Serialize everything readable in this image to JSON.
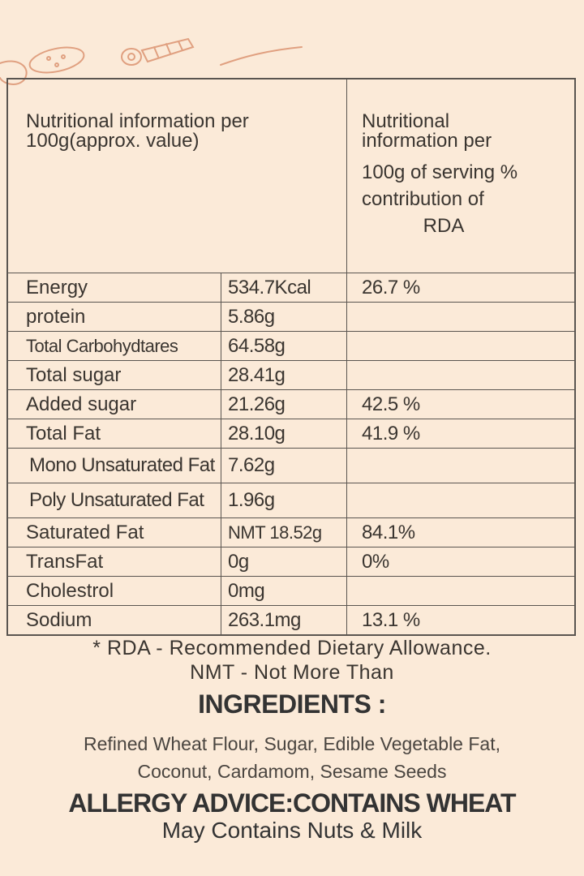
{
  "header": {
    "left_line1": "Nutritional information per",
    "left_line2": "100g(approx. value)",
    "right_line1": "Nutritional",
    "right_line2": "information per",
    "right_line3": "100g of serving %",
    "right_line4": "contribution of",
    "right_line5": "RDA"
  },
  "rows": [
    {
      "label": "Energy",
      "value": "534.7Kcal",
      "rda": "26.7 %"
    },
    {
      "label": "protein",
      "value": "5.86g",
      "rda": ""
    },
    {
      "label": "Total Carbohydtares",
      "value": "64.58g",
      "rda": ""
    },
    {
      "label": "Total sugar",
      "value": "28.41g",
      "rda": ""
    },
    {
      "label": "Added sugar",
      "value": "21.26g",
      "rda": "42.5 %"
    },
    {
      "label": "Total Fat",
      "value": "28.10g",
      "rda": "41.9 %"
    },
    {
      "label": "Mono Unsaturated Fat",
      "value": "7.62g",
      "rda": ""
    },
    {
      "label": "Poly Unsaturated Fat",
      "value": "1.96g",
      "rda": ""
    },
    {
      "label": "Saturated Fat",
      "value": "NMT 18.52g",
      "rda": "84.1%"
    },
    {
      "label": "TransFat",
      "value": "0g",
      "rda": "0%"
    },
    {
      "label": "Cholestrol",
      "value": "0mg",
      "rda": ""
    },
    {
      "label": "Sodium",
      "value": "263.1mg",
      "rda": "13.1 %"
    }
  ],
  "notes": {
    "rda": "* RDA - Recommended Dietary Allowance.",
    "nmt": "NMT - Not More Than"
  },
  "ingredients": {
    "heading": "INGREDIENTS :",
    "line1": "Refined Wheat Flour, Sugar, Edible Vegetable Fat,",
    "line2": "Coconut, Cardamom, Sesame Seeds"
  },
  "allergy": {
    "heading": "ALLERGY ADVICE:CONTAINS WHEAT",
    "line": "May Contains Nuts & Milk"
  },
  "colors": {
    "background": "#fbead8",
    "doodle": "#e0a080",
    "border": "#5a5550"
  }
}
